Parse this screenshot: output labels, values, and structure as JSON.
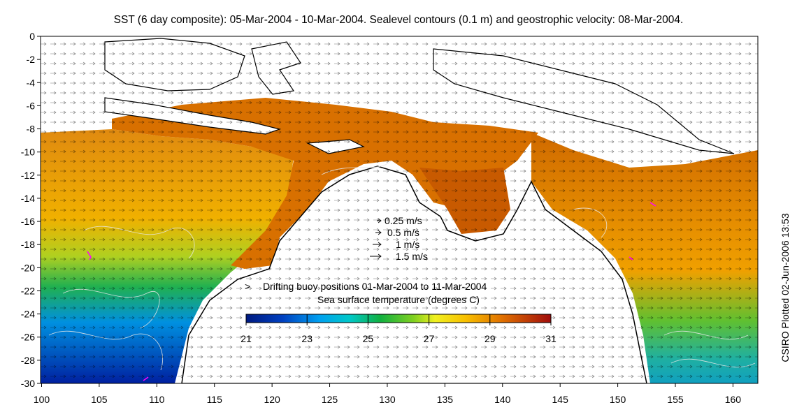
{
  "title": "SST (6 day composite): 05-Mar-2004 - 10-Mar-2004. Sealevel contours (0.1 m) and geostrophic velocity: 08-Mar-2004.",
  "side_label": "CSIRO Plotted 02-Jun-2006 13:53",
  "x_ticks": [
    "100",
    "105",
    "110",
    "115",
    "120",
    "125",
    "130",
    "135",
    "140",
    "145",
    "150",
    "155",
    "160"
  ],
  "y_ticks": [
    "0",
    "-2",
    "-4",
    "-6",
    "-8",
    "-10",
    "-12",
    "-14",
    "-16",
    "-18",
    "-20",
    "-22",
    "-24",
    "-26",
    "-28",
    "-30"
  ],
  "velocity_legend": [
    {
      "label": "0.25 m/s",
      "value": 0.25
    },
    {
      "label": "0.5 m/s",
      "value": 0.5
    },
    {
      "label": "1 m/s",
      "value": 1
    },
    {
      "label": "1.5 m/s",
      "value": 1.5
    }
  ],
  "buoy_legend": {
    "label": "Drifting buoy positions 01-Mar-2004 to 11-Mar-2004",
    "color": "#ff00ff"
  },
  "colorbar": {
    "title": "Sea surface temperature (degrees C)",
    "ticks": [
      "21",
      "23",
      "25",
      "27",
      "29",
      "31"
    ],
    "min": 21,
    "max": 31
  },
  "colors": {
    "cold": "#00208c",
    "cool": "#0090e0",
    "mid": "#10b040",
    "warm": "#f0b000",
    "hot": "#d06000",
    "hottest": "#a01010",
    "land": "#ffffff",
    "coast": "#000000"
  }
}
